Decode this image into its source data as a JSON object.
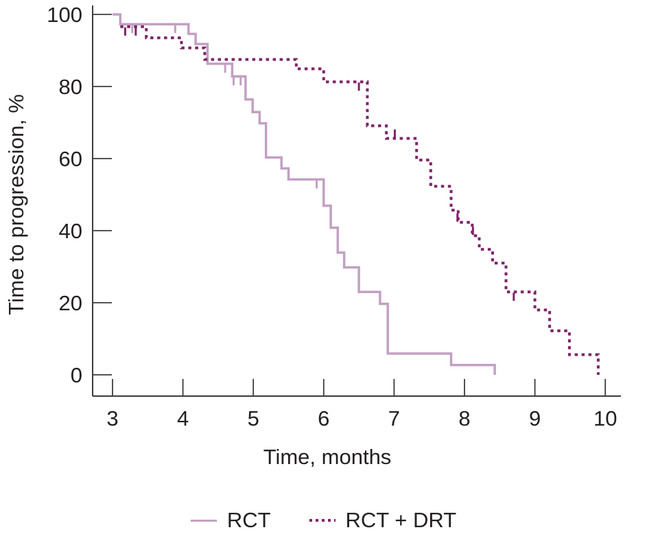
{
  "chart_data": {
    "type": "line",
    "subtype": "kaplan_meier_step",
    "title": "",
    "xlabel": "Time, months",
    "ylabel": "Time to progression, %",
    "xlim": [
      2.7,
      10.2
    ],
    "ylim": [
      0,
      100
    ],
    "x_ticks": [
      3,
      4,
      5,
      6,
      7,
      8,
      9,
      10
    ],
    "y_ticks": [
      0,
      20,
      40,
      60,
      80,
      100
    ],
    "grid": false,
    "legend_position": "bottom-center",
    "axis_color": "#3c3a3b",
    "text_color": "#231f20",
    "series": [
      {
        "name": "RCT",
        "style": "solid",
        "color": "#c2a0c2",
        "points": [
          [
            3.0,
            100
          ],
          [
            3.11,
            97.3
          ],
          [
            4.08,
            94.6
          ],
          [
            4.18,
            91.8
          ],
          [
            4.35,
            86.3
          ],
          [
            4.7,
            82.8
          ],
          [
            4.89,
            76.4
          ],
          [
            4.99,
            72.9
          ],
          [
            5.09,
            69.8
          ],
          [
            5.18,
            60.3
          ],
          [
            5.4,
            57.3
          ],
          [
            5.5,
            54.2
          ],
          [
            6.0,
            46.9
          ],
          [
            6.1,
            40.8
          ],
          [
            6.2,
            33.9
          ],
          [
            6.29,
            29.8
          ],
          [
            6.5,
            23.0
          ],
          [
            6.8,
            19.7
          ],
          [
            6.91,
            5.9
          ],
          [
            7.81,
            2.7
          ],
          [
            8.43,
            0
          ]
        ],
        "censor_marks": [
          [
            3.28,
            97.3,
            "down"
          ],
          [
            3.89,
            97.3,
            "down"
          ],
          [
            4.6,
            86.3,
            "down"
          ],
          [
            4.72,
            82.8,
            "down"
          ],
          [
            4.82,
            82.8,
            "down"
          ],
          [
            5.9,
            54.2,
            "down"
          ]
        ]
      },
      {
        "name": "RCT + DRT",
        "style": "dashed",
        "color": "#7f2368",
        "points": [
          [
            3.11,
            96.6
          ],
          [
            3.48,
            93.5
          ],
          [
            3.98,
            90.7
          ],
          [
            4.31,
            87.5
          ],
          [
            5.61,
            84.9
          ],
          [
            6.0,
            81.3
          ],
          [
            6.62,
            69.1
          ],
          [
            6.89,
            65.6
          ],
          [
            7.32,
            59.6
          ],
          [
            7.52,
            52.3
          ],
          [
            7.81,
            45.7
          ],
          [
            7.91,
            42.3
          ],
          [
            8.11,
            38.6
          ],
          [
            8.21,
            34.8
          ],
          [
            8.4,
            31.0
          ],
          [
            8.59,
            23.0
          ],
          [
            9.0,
            18.0
          ],
          [
            9.21,
            12.2
          ],
          [
            9.49,
            5.6
          ],
          [
            9.9,
            0
          ]
        ],
        "censor_marks": [
          [
            3.18,
            96.6,
            "down"
          ],
          [
            3.33,
            96.6,
            "down"
          ],
          [
            6.5,
            81.3,
            "down"
          ],
          [
            7.01,
            65.6,
            "up"
          ],
          [
            7.9,
            42.3,
            "up"
          ],
          [
            8.12,
            38.6,
            "up"
          ],
          [
            8.7,
            23.0,
            "down"
          ]
        ]
      }
    ]
  }
}
